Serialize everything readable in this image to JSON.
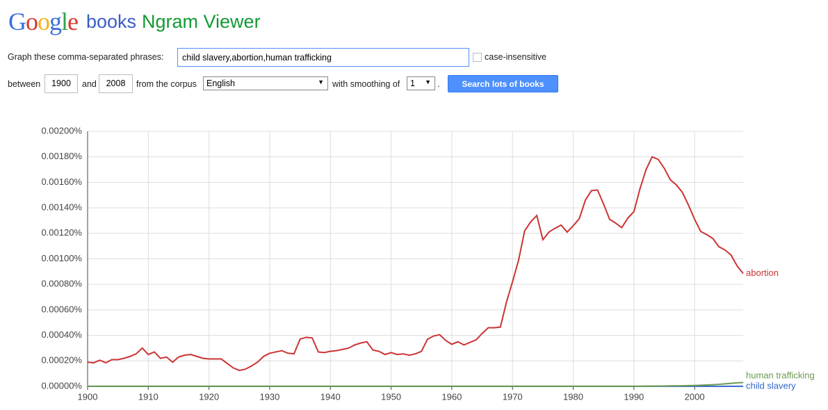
{
  "header": {
    "logo": "Google",
    "books": "books",
    "title": "Ngram Viewer"
  },
  "form": {
    "phrases_label": "Graph these comma-separated phrases:",
    "phrases": "child slavery,abortion,human trafficking",
    "case_label": "case-insensitive",
    "between_label": "between",
    "start_year": "1900",
    "and_label": "and",
    "end_year": "2008",
    "corpus_label": "from the corpus",
    "corpus": "English",
    "smoothing_label": "with smoothing of",
    "smoothing": "1",
    "period": ".",
    "button": "Search lots of books"
  },
  "chart_data": {
    "type": "line",
    "xlim": [
      1900,
      2008
    ],
    "xticks": [
      1900,
      1910,
      1920,
      1930,
      1940,
      1950,
      1960,
      1970,
      1980,
      1990,
      2000
    ],
    "ylim": [
      0,
      0.002
    ],
    "yticks": [
      {
        "value": 0,
        "label": "0.00000%"
      },
      {
        "value": 0.0002,
        "label": "0.00020%"
      },
      {
        "value": 0.0004,
        "label": "0.00040%"
      },
      {
        "value": 0.0006,
        "label": "0.00060%"
      },
      {
        "value": 0.0008,
        "label": "0.00080%"
      },
      {
        "value": 0.001,
        "label": "0.00100%"
      },
      {
        "value": 0.0012,
        "label": "0.00120%"
      },
      {
        "value": 0.0014,
        "label": "0.00140%"
      },
      {
        "value": 0.0016,
        "label": "0.00160%"
      },
      {
        "value": 0.0018,
        "label": "0.00180%"
      },
      {
        "value": 0.002,
        "label": "0.00200%"
      }
    ],
    "grid": true,
    "x": [
      1900,
      1901,
      1902,
      1903,
      1904,
      1905,
      1906,
      1907,
      1908,
      1909,
      1910,
      1911,
      1912,
      1913,
      1914,
      1915,
      1916,
      1917,
      1918,
      1919,
      1920,
      1921,
      1922,
      1923,
      1924,
      1925,
      1926,
      1927,
      1928,
      1929,
      1930,
      1931,
      1932,
      1933,
      1934,
      1935,
      1936,
      1937,
      1938,
      1939,
      1940,
      1941,
      1942,
      1943,
      1944,
      1945,
      1946,
      1947,
      1948,
      1949,
      1950,
      1951,
      1952,
      1953,
      1954,
      1955,
      1956,
      1957,
      1958,
      1959,
      1960,
      1961,
      1962,
      1963,
      1964,
      1965,
      1966,
      1967,
      1968,
      1969,
      1970,
      1971,
      1972,
      1973,
      1974,
      1975,
      1976,
      1977,
      1978,
      1979,
      1980,
      1981,
      1982,
      1983,
      1984,
      1985,
      1986,
      1987,
      1988,
      1989,
      1990,
      1991,
      1992,
      1993,
      1994,
      1995,
      1996,
      1997,
      1998,
      1999,
      2000,
      2001,
      2002,
      2003,
      2004,
      2005,
      2006,
      2007,
      2008
    ],
    "series": [
      {
        "name": "child slavery",
        "color": "#3366cc",
        "values": [
          1e-06,
          1e-06,
          1e-06,
          1e-06,
          1e-06,
          1e-06,
          1e-06,
          1e-06,
          1e-06,
          1e-06,
          1e-06,
          1e-06,
          1e-06,
          1e-06,
          1e-06,
          1e-06,
          1e-06,
          1e-06,
          1e-06,
          1e-06,
          1e-06,
          1e-06,
          1e-06,
          1e-06,
          1e-06,
          1e-06,
          1e-06,
          1e-06,
          1e-06,
          1e-06,
          1e-06,
          1e-06,
          1e-06,
          1e-06,
          1e-06,
          1e-06,
          1e-06,
          1e-06,
          1e-06,
          1e-06,
          1e-06,
          1e-06,
          1e-06,
          1e-06,
          1e-06,
          1e-06,
          1e-06,
          1e-06,
          1e-06,
          1e-06,
          1e-06,
          1e-06,
          1e-06,
          1e-06,
          1e-06,
          1e-06,
          1e-06,
          1e-06,
          1e-06,
          1e-06,
          1e-06,
          1e-06,
          1e-06,
          1e-06,
          1e-06,
          1e-06,
          1e-06,
          1e-06,
          1e-06,
          1e-06,
          1e-06,
          1e-06,
          1e-06,
          1e-06,
          1e-06,
          1e-06,
          1e-06,
          1e-06,
          1e-06,
          1e-06,
          1e-06,
          1e-06,
          1e-06,
          1e-06,
          1e-06,
          1e-06,
          1e-06,
          1e-06,
          1e-06,
          1e-06,
          1e-06,
          1e-06,
          1e-06,
          1e-06,
          1e-06,
          1e-06,
          1e-06,
          1e-06,
          1e-06,
          1e-06,
          1e-06,
          1e-06,
          1e-06,
          1e-06,
          1e-06,
          1e-06,
          1e-06,
          1e-06,
          1e-06
        ]
      },
      {
        "name": "abortion",
        "color": "#cc3333",
        "values": [
          0.00019,
          0.000185,
          0.000205,
          0.000185,
          0.00021,
          0.00021,
          0.00022,
          0.000235,
          0.000255,
          0.0003,
          0.00025,
          0.00027,
          0.00022,
          0.00023,
          0.00019,
          0.00023,
          0.000245,
          0.00025,
          0.000235,
          0.00022,
          0.000215,
          0.000215,
          0.000215,
          0.00018,
          0.000145,
          0.000125,
          0.000135,
          0.00016,
          0.00019,
          0.000235,
          0.00026,
          0.00027,
          0.00028,
          0.00026,
          0.000255,
          0.00037,
          0.000385,
          0.00038,
          0.00027,
          0.000265,
          0.000275,
          0.00028,
          0.00029,
          0.0003,
          0.000325,
          0.00034,
          0.00035,
          0.000285,
          0.000275,
          0.00025,
          0.000265,
          0.00025,
          0.000255,
          0.000245,
          0.000255,
          0.000275,
          0.00037,
          0.000395,
          0.000405,
          0.00036,
          0.00033,
          0.00035,
          0.000325,
          0.000345,
          0.000365,
          0.000415,
          0.00046,
          0.00046,
          0.000465,
          0.00066,
          0.00082,
          0.00099,
          0.00122,
          0.00129,
          0.00134,
          0.00115,
          0.00121,
          0.00124,
          0.001265,
          0.00121,
          0.00126,
          0.001315,
          0.00146,
          0.001535,
          0.00154,
          0.00143,
          0.00131,
          0.00128,
          0.001245,
          0.00132,
          0.00137,
          0.00155,
          0.0017,
          0.0018,
          0.00178,
          0.00171,
          0.00162,
          0.00158,
          0.00152,
          0.00142,
          0.00131,
          0.001215,
          0.00119,
          0.00116,
          0.001095,
          0.00107,
          0.00103,
          0.000945,
          0.000885
        ]
      },
      {
        "name": "human trafficking",
        "color": "#6b9a4e",
        "values": [
          1e-06,
          1e-06,
          1e-06,
          1e-06,
          1e-06,
          1e-06,
          1e-06,
          1e-06,
          1e-06,
          1e-06,
          1e-06,
          1e-06,
          1e-06,
          1e-06,
          1e-06,
          1e-06,
          1e-06,
          1e-06,
          1e-06,
          1e-06,
          1e-06,
          1e-06,
          1e-06,
          1e-06,
          1e-06,
          1e-06,
          1e-06,
          1e-06,
          1e-06,
          1e-06,
          1e-06,
          1e-06,
          1e-06,
          1e-06,
          1e-06,
          1e-06,
          1e-06,
          1e-06,
          1e-06,
          1e-06,
          1e-06,
          1e-06,
          1e-06,
          1e-06,
          1e-06,
          1e-06,
          1e-06,
          1e-06,
          1e-06,
          1e-06,
          1e-06,
          1e-06,
          1e-06,
          1e-06,
          1e-06,
          1e-06,
          1e-06,
          1e-06,
          1e-06,
          1e-06,
          1e-06,
          1e-06,
          1e-06,
          1e-06,
          1e-06,
          1e-06,
          1e-06,
          1e-06,
          1e-06,
          1e-06,
          1e-06,
          1e-06,
          1e-06,
          1e-06,
          1e-06,
          1e-06,
          1e-06,
          1e-06,
          1e-06,
          1e-06,
          1e-06,
          1e-06,
          1e-06,
          1e-06,
          1e-06,
          1e-06,
          1e-06,
          1e-06,
          1e-06,
          1e-06,
          1e-06,
          1e-06,
          2e-06,
          2e-06,
          3e-06,
          3e-06,
          4e-06,
          4e-06,
          5e-06,
          6e-06,
          7e-06,
          9e-06,
          1.1e-05,
          1.3e-05,
          1.6e-05,
          2e-05,
          2.4e-05,
          2.8e-05,
          3e-05
        ]
      }
    ]
  }
}
